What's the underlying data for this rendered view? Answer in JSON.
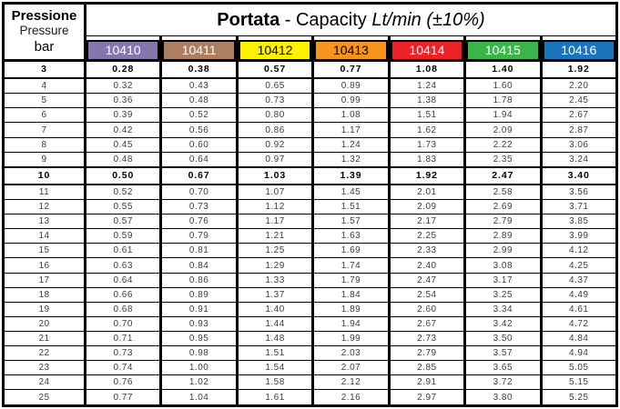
{
  "header": {
    "pressure_label_it": "Pressione",
    "pressure_label_en": "Pressure",
    "unit_label": "bar",
    "title_bold": "Portata",
    "title_regular": " - Capacity ",
    "title_italic": "Lt/min (±10%)"
  },
  "columns": [
    {
      "code": "10410",
      "color": "#8576AE",
      "text_color": "#ffffff"
    },
    {
      "code": "10411",
      "color": "#AD7E5F",
      "text_color": "#ffffff"
    },
    {
      "code": "10412",
      "color": "#FFF200",
      "text_color": "#000000"
    },
    {
      "code": "10413",
      "color": "#F7941E",
      "text_color": "#000000"
    },
    {
      "code": "10414",
      "color": "#EC2227",
      "text_color": "#ffffff"
    },
    {
      "code": "10415",
      "color": "#3BB54A",
      "text_color": "#ffffff"
    },
    {
      "code": "10416",
      "color": "#1C75BC",
      "text_color": "#ffffff"
    }
  ],
  "rows": [
    {
      "bar": "3",
      "bold": true,
      "values": [
        "0.28",
        "0.38",
        "0.57",
        "0.77",
        "1.08",
        "1.40",
        "1.92"
      ]
    },
    {
      "bar": "4",
      "bold": false,
      "values": [
        "0.32",
        "0.43",
        "0.65",
        "0.89",
        "1.24",
        "1.60",
        "2.20"
      ]
    },
    {
      "bar": "5",
      "bold": false,
      "values": [
        "0.36",
        "0.48",
        "0.73",
        "0.99",
        "1.38",
        "1.78",
        "2.45"
      ]
    },
    {
      "bar": "6",
      "bold": false,
      "values": [
        "0.39",
        "0.52",
        "0.80",
        "1.08",
        "1.51",
        "1.94",
        "2.67"
      ]
    },
    {
      "bar": "7",
      "bold": false,
      "values": [
        "0.42",
        "0.56",
        "0.86",
        "1.17",
        "1.62",
        "2.09",
        "2.87"
      ]
    },
    {
      "bar": "8",
      "bold": false,
      "values": [
        "0.45",
        "0.60",
        "0.92",
        "1.24",
        "1.73",
        "2.22",
        "3.06"
      ]
    },
    {
      "bar": "9",
      "bold": false,
      "values": [
        "0.48",
        "0.64",
        "0.97",
        "1.32",
        "1.83",
        "2.35",
        "3.24"
      ]
    },
    {
      "bar": "10",
      "bold": true,
      "values": [
        "0.50",
        "0.67",
        "1.03",
        "1.39",
        "1.92",
        "2.47",
        "3.40"
      ]
    },
    {
      "bar": "11",
      "bold": false,
      "values": [
        "0.52",
        "0.70",
        "1.07",
        "1.45",
        "2.01",
        "2.58",
        "3.56"
      ]
    },
    {
      "bar": "12",
      "bold": false,
      "values": [
        "0.55",
        "0.73",
        "1.12",
        "1.51",
        "2.09",
        "2.69",
        "3.71"
      ]
    },
    {
      "bar": "13",
      "bold": false,
      "values": [
        "0.57",
        "0.76",
        "1.17",
        "1.57",
        "2.17",
        "2.79",
        "3.85"
      ]
    },
    {
      "bar": "14",
      "bold": false,
      "values": [
        "0.59",
        "0.79",
        "1.21",
        "1.63",
        "2.25",
        "2.89",
        "3.99"
      ]
    },
    {
      "bar": "15",
      "bold": false,
      "values": [
        "0.61",
        "0.81",
        "1.25",
        "1.69",
        "2.33",
        "2.99",
        "4.12"
      ]
    },
    {
      "bar": "16",
      "bold": false,
      "values": [
        "0.63",
        "0.84",
        "1.29",
        "1.74",
        "2.40",
        "3.08",
        "4.25"
      ]
    },
    {
      "bar": "17",
      "bold": false,
      "values": [
        "0.64",
        "0.86",
        "1.33",
        "1.79",
        "2.47",
        "3.17",
        "4.37"
      ]
    },
    {
      "bar": "18",
      "bold": false,
      "values": [
        "0.66",
        "0.89",
        "1.37",
        "1.84",
        "2.54",
        "3.25",
        "4.49"
      ]
    },
    {
      "bar": "19",
      "bold": false,
      "values": [
        "0.68",
        "0.91",
        "1.40",
        "1.89",
        "2.60",
        "3.34",
        "4.61"
      ]
    },
    {
      "bar": "20",
      "bold": false,
      "values": [
        "0.70",
        "0.93",
        "1.44",
        "1.94",
        "2.67",
        "3.42",
        "4.72"
      ]
    },
    {
      "bar": "21",
      "bold": false,
      "values": [
        "0.71",
        "0.95",
        "1.48",
        "1.99",
        "2.73",
        "3.50",
        "4.84"
      ]
    },
    {
      "bar": "22",
      "bold": false,
      "values": [
        "0.73",
        "0.98",
        "1.51",
        "2.03",
        "2.79",
        "3.57",
        "4.94"
      ]
    },
    {
      "bar": "23",
      "bold": false,
      "values": [
        "0.74",
        "1.00",
        "1.54",
        "2.07",
        "2.85",
        "3.65",
        "5.05"
      ]
    },
    {
      "bar": "24",
      "bold": false,
      "values": [
        "0.76",
        "1.02",
        "1.58",
        "2.12",
        "2.91",
        "3.72",
        "5.15"
      ]
    },
    {
      "bar": "25",
      "bold": false,
      "values": [
        "0.77",
        "1.04",
        "1.61",
        "2.16",
        "2.97",
        "3.80",
        "5.25"
      ]
    }
  ]
}
